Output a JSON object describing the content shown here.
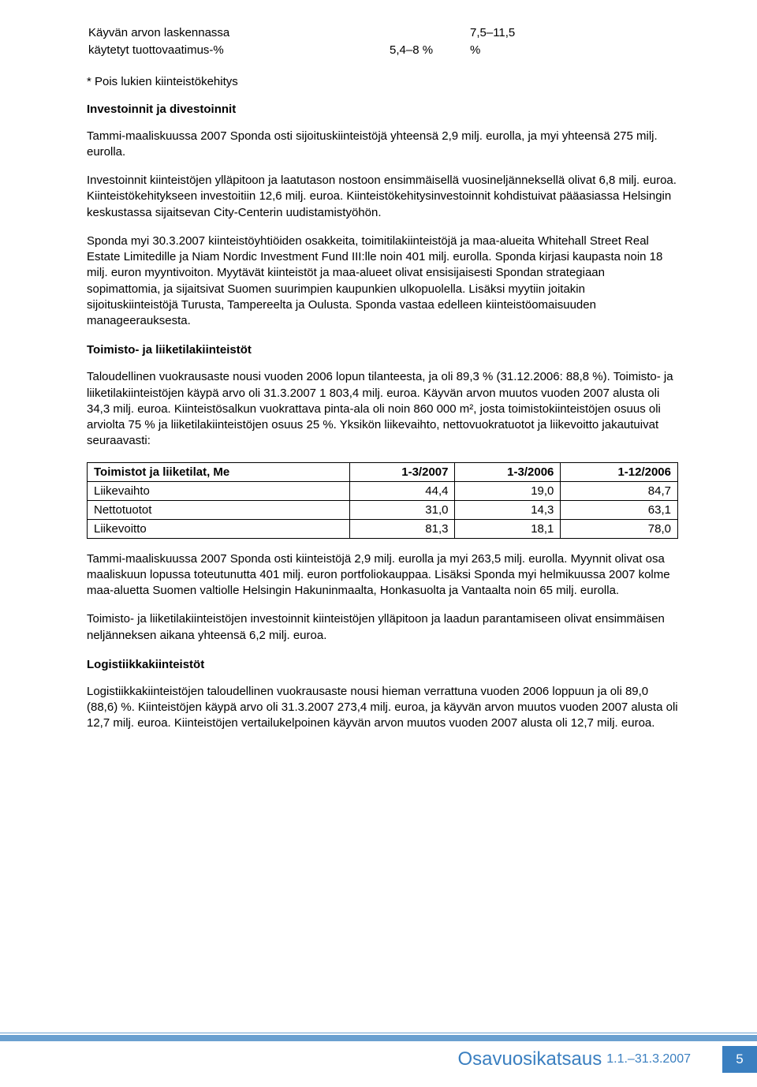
{
  "smallTable": {
    "row1": {
      "label": "Käyvän arvon laskennassa",
      "col2": "",
      "col3": "7,5–11,5"
    },
    "row2": {
      "label": "käytetyt tuottovaatimus-%",
      "col2": "5,4–8 %",
      "col3": "%"
    },
    "footnote": "* Pois lukien kiinteistökehitys"
  },
  "sections": {
    "investoinnit": {
      "title": "Investoinnit ja divestoinnit",
      "p1": "Tammi-maaliskuussa 2007 Sponda osti sijoituskiinteistöjä yhteensä 2,9 milj. eurolla, ja myi yhteensä 275 milj. eurolla.",
      "p2": "Investoinnit kiinteistöjen ylläpitoon ja laatutason nostoon ensimmäisellä vuosineljänneksellä olivat 6,8 milj. euroa. Kiinteistökehitykseen investoitiin 12,6 milj. euroa. Kiinteistökehitysinvestoinnit kohdistuivat pääasiassa Helsingin keskustassa sijaitsevan City-Centerin uudistamistyöhön.",
      "p3": "Sponda myi 30.3.2007 kiinteistöyhtiöiden osakkeita, toimitilakiinteistöjä ja maa-alueita Whitehall Street Real Estate Limitedille ja Niam Nordic Investment Fund III:lle noin 401 milj. eurolla. Sponda kirjasi kaupasta noin 18 milj. euron myyntivoiton. Myytävät kiinteistöt ja maa-alueet olivat ensisijaisesti Spondan strategiaan sopimattomia, ja sijaitsivat Suomen suurimpien kaupunkien ulkopuolella. Lisäksi myytiin joitakin sijoituskiinteistöjä Turusta, Tampereelta ja Oulusta. Sponda vastaa edelleen kiinteistöomaisuuden manageerauksesta."
    },
    "toimisto": {
      "title": "Toimisto- ja liiketilakiinteistöt",
      "p1": "Taloudellinen vuokrausaste nousi vuoden 2006 lopun tilanteesta, ja oli 89,3 % (31.12.2006: 88,8 %). Toimisto- ja liiketilakiinteistöjen käypä arvo oli 31.3.2007 1 803,4 milj. euroa. Käyvän arvon muutos vuoden 2007 alusta oli 34,3 milj. euroa. Kiinteistösalkun vuokrattava pinta-ala oli noin 860 000 m², josta toimistokiinteistöjen osuus oli arviolta 75 % ja liiketilakiinteistöjen osuus 25 %. Yksikön liikevaihto, nettovuokratuotot ja liikevoitto jakautuivat seuraavasti:",
      "table": {
        "head": [
          "Toimistot ja liiketilat, Me",
          "1-3/2007",
          "1-3/2006",
          "1-12/2006"
        ],
        "rows": [
          {
            "label": "Liikevaihto",
            "c1": "44,4",
            "c2": "19,0",
            "c3": "84,7"
          },
          {
            "label": "Nettotuotot",
            "c1": "31,0",
            "c2": "14,3",
            "c3": "63,1"
          },
          {
            "label": "Liikevoitto",
            "c1": "81,3",
            "c2": "18,1",
            "c3": "78,0"
          }
        ]
      },
      "p2": "Tammi-maaliskuussa 2007 Sponda osti kiinteistöjä 2,9 milj. eurolla ja myi 263,5 milj. eurolla. Myynnit olivat osa maaliskuun lopussa toteutunutta 401 milj. euron portfoliokauppaa. Lisäksi Sponda myi helmikuussa 2007 kolme maa-aluetta Suomen valtiolle Helsingin Hakuninmaalta, Honkasuolta ja Vantaalta noin 65 milj. eurolla.",
      "p3": "Toimisto- ja liiketilakiinteistöjen investoinnit kiinteistöjen ylläpitoon ja laadun parantamiseen olivat ensimmäisen neljänneksen aikana yhteensä 6,2 milj. euroa."
    },
    "logistiikka": {
      "title": "Logistiikkakiinteistöt",
      "p1": "Logistiikkakiinteistöjen taloudellinen vuokrausaste nousi hieman verrattuna vuoden 2006 loppuun ja oli 89,0 (88,6) %. Kiinteistöjen käypä arvo oli 31.3.2007 273,4 milj. euroa, ja käyvän arvon muutos vuoden 2007 alusta oli 12,7 milj. euroa. Kiinteistöjen vertailukelpoinen käyvän arvon muutos vuoden 2007 alusta oli 12,7 milj. euroa."
    }
  },
  "footer": {
    "title": "Osavuosikatsaus",
    "date": "1.1.–31.3.2007",
    "page": "5"
  },
  "colors": {
    "accent": "#3a7fc0",
    "bar": "#6aa0d0",
    "text": "#000000",
    "bg": "#ffffff"
  }
}
